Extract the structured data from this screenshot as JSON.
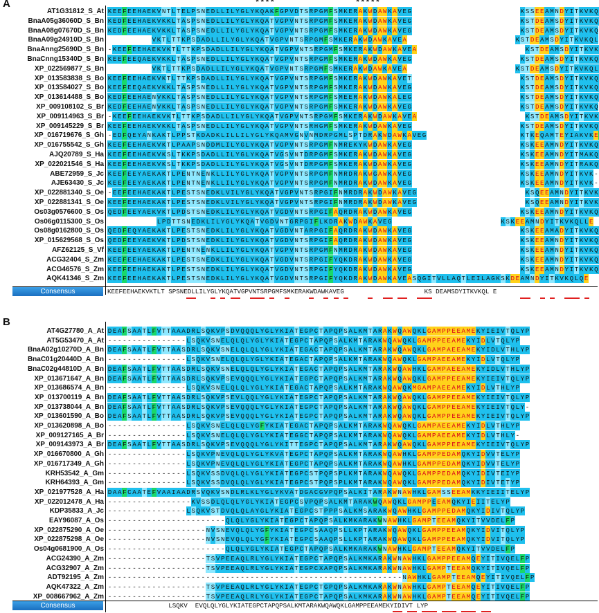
{
  "panelA": {
    "label": "A",
    "stars1": "****",
    "stars2": "*****",
    "consensus_label": "Consensus",
    "consensus_seq": "KEEFEEHAEKVKTLT SPSNEDLLILYGLYKQATVGPVNTSRPGMFSMKERAKWDAWKAVEG                     KS DEAMSDYITKVKQL E",
    "rows": [
      {
        "name": "AT1G31812_S_At",
        "seq": "KEEFEEHAEKVNTLTELPSNEDLLILYGLYKQAKFGPVDTSRPGMFSMKERAKWDAWKAVEG                      KSSEEAMNDYITKVKQLLE"
      },
      {
        "name": "BnaA05g36060D_S_Bn",
        "seq": "KEDFEEHAEKVKKLTASPSNEDLLILYGLYKQATVGPVNTSRPGMFSMKERAKWDAWKAVEG                      KSTDEAMSDYITKVKQLLE"
      },
      {
        "name": "BnaA08g07670D_S_Bn",
        "seq": "KEDFEEHAEKVKKLTASPSNEDLLILYGLYKQATVGPVNTSRPGMFSMKERAKWDAWKAVEG                      KSTDEAMSDYITKVKQ-"
      },
      {
        "name": "BnaA09g24910D_S_Bn",
        "seq": "         VKTLTTKPSDADLLILYGLYKQATVGPVNTSRPGMFSMKERAKWDAWKAVEA                      KSTDEAMSDYITKVKQL"
      },
      {
        "name": "BnaAnng25690D_S_Bn",
        "seq": "-KEEFEEHAEKVKTLTTKPSDADLLILYGLYKQATVGPVNTSRPGMFSMKERAKWDAWKAVEA                      KSTDEAMSDYITKVKQLM-"
      },
      {
        "name": "BnaCnng15340D_S_Bn",
        "seq": "KEEFEEQAEKVKKLTASPSNEDLLILYGLYKQATVGPVNTSRPGMFSMKERAKWDAWKAVEG                      KSTDEAMSDYITKVKQLLAE"
      },
      {
        "name": "XP_022569877_S_Bn",
        "seq": "         VKTLTTKPSDADLLILYGLYKQATVGPVNTSRPGMFSMKERAKWDAWKAVEA                      KSTDEAMSDYITKVKQLM-"
      },
      {
        "name": "XP_013583838_S_Bo",
        "seq": "KEEFEEHAEKVKTLTTKPSDADLLILYGLYKQATVGPVNTSRPGMFSMKERAKWDAWKAVET                      KSTDEAMSDYITKVKQLLE"
      },
      {
        "name": "XP_013584027_S_Bo",
        "seq": "KEEFEEQAEKVKKLTASPSNEDLLILYGLYKQATVGPVNTSRPGMFSMKERAKWDAWKAVEG                      KSTDEAMSDYITKVKQLLE"
      },
      {
        "name": "XP_013614488_S_Bo",
        "seq": "KEDFEEHAENVKKLTASPSNEDLLILYGLYKQATVGPVNTSRPGMFSMEERAKWDAWKALEG                      KSTDEAMSDYITKVKQLLE"
      },
      {
        "name": "XP_009108102_S_Br",
        "seq": "KEDFEEHAENVKKLTASPSNEDLLILYGLYKQATVGPVNTSRPGMFSMKERAKWDAWKAVEG                      KSTDEAMSDYITKVKQ-"
      },
      {
        "name": "XP_009114963_S_Br",
        "seq": "-KEEFEEHAEKVKTLTTKPSDADLLILYGLYKQATVGPVNTSRPGMFSMKERAKWDAWKAVEA                      KSTDEAMSDYITKVKQLME"
      },
      {
        "name": "XP_009145229_S_Br",
        "seq": "KEEFEEHAEKVKKLTASPSNEDLLILYGLYKQATVGPVNTSRHGMFSMKERAKWDAWKAVEG                      KSTDEAMSDYITKVKQLLE"
      },
      {
        "name": "XP_016719676_S_Gh",
        "seq": "-EDFQEYANKAKTLPPSTKDADKLILLILYGLYKQAMVGNVNMDRPGMLSPTDRAKWDAWKAVEG                   KTKEQAMTEYIAKVKEFL-"
      },
      {
        "name": "XP_016755542_S_Gh",
        "seq": "KEEFEEHAEKVKTLPAAPSNDDMLILYGLYKQATVGPVNTSRPGMFNMREKYKWDAWKAVEG                      KSKEEAMNDYITKVKQLLE"
      },
      {
        "name": "AJQ20789_S_Ha",
        "seq": "KEEFEEHAEKVKSLTKKPSDADLLILYGLYKQATVGSVNTDRPGMFSMKERAKWDAWKAVEG                      KSKEEAMNDYITMAKQLLE"
      },
      {
        "name": "XP_022021546_S_Ha",
        "seq": "KEEFEEHAEKVKSLTKKPSDADLLILYGLYKQATVGSVNTDRPGMFSMKERAKWDAWKAVEG                      KSKEEAMNDYITRAKQLLE"
      },
      {
        "name": "ABE72959_S_Jc",
        "seq": "KEEFEEYAEKAKTLPENTNENKLLILYGLYKQATVGPVNTSRPGMFNMRDRAKWGAWKAVEG                      KSKEEAMNDYITKVK-"
      },
      {
        "name": "AJE63430_S_Jc",
        "seq": "KEEFEEYAEKAKTLPENTNENKLLILYGLYKQATVGPVNTSRPGMFNMRDRAKWDAWKAVEG                      KSKEEAMNDYITKVK-"
      },
      {
        "name": "XP_022881340_S_Oe",
        "seq": "-EEFEEHAEKAKTLPESTSNEDKLVILYGLYKQATVGPVNTSRPGIFNMRDRAKWDAWKAVEG                      KSQEEAMNDYITKVKQLLE"
      },
      {
        "name": "XP_022881341_S_Oe",
        "seq": "KEEFEEHAEKAKTLPESTSNEDKLVILYGLYKQATVGPVNTSRPGIFNMRDRAKWDAWKAVEG                      KSQEEAMNDYITKVKQLLE"
      },
      {
        "name": "Os03g0576600_S_Os",
        "seq": "QEDFEEYAEKVKTLPDSTSNEDKLILYGLYKQATVGDVNTSRPGIFAQRDRAKWDAWKAVEG                      KSKEEAMNDYITKVKQLLE"
      },
      {
        "name": "Os06g0115300_S_Os",
        "seq": "          LPDTTSNEDKLILYGLYKQATVGDVNTGRPGIFLKDRAKWDAWKAVEG                      KSKEEAMNDYITKVKQLLE"
      },
      {
        "name": "Os08g0162800_S_Os",
        "seq": "QEDFEQYAEKAKTLPESTSNEDKLILYGLYKQATVGDVNTARPGIFAQRDRAKWDAWKAVEG                      KSKEEAMADYITKVKQLLE"
      },
      {
        "name": "XP_015629568_S_Os",
        "seq": "QEDFEEYAEKVKTLPDSTSNEDKLILYGLYKQATVGDVNTSRPGIFAQRDRAKWDAWKAVEG                      KSKEEAMNDYITKVKQLQE"
      },
      {
        "name": "AFZ62125_S_Vf",
        "seq": "KEEFEEYAEKAKTLPENTNENKLLILYGLYKQATVGPVNTSRPGMFNMRDRAKWDAWKAVEG                      KSKEEAMNDYITKVKQLLE"
      },
      {
        "name": "ACG32404_S_Zm",
        "seq": "KEEFEEHAEKAKTLPESTSNEDKLILYGLYKQATVGDVNTSRPGIFYQKDRAKWDAWKAVEG                      KSKEEAMNDYITKVKQLQE"
      },
      {
        "name": "ACG46576_S_Zm",
        "seq": "KEEFEEHAEKAKTLPESTSNEDKLILYGLYKQATVGDVNTSRPGIFYQKDRAKWDAWKAVEG                      KSKEEAMNDYITKVKQLQE"
      },
      {
        "name": "AQK41346_S_Zm",
        "seq": "KEEFEEHAEKAKTLPESTSNEDKLILYGLYKQATVGDVNTSRPGIFYQKDRAKWDAWKAVEASQGITVLLAQTLEILAGKSKDEAMNDYITKVKQLQE"
      }
    ]
  },
  "panelB": {
    "label": "B",
    "consensus_label": "Consensus",
    "consensus_seq": "                LSQKV  EVQLQLYGLYKIATEGPCTAPQPSALKMTARAKWQAWQKLGAMPPEEAMEKYIDIVT LYP",
    "rows": [
      {
        "name": "AT4G27780_A_At",
        "seq": "DEAFSAATLFVTTAAADRLSQKVPSDVQQQLYGLYKIATEGPCTAPQPSALKMTARAKWQAWQKLGAMPPEEAMEKYIEIVTQLYP"
      },
      {
        "name": "AT5G53470_A_At",
        "seq": "----------------LSQKVSNELQLQLYGLYKIATEGPCTAPQPSALKMTARAKWQAWQKLGAMPPEEAMEKYIDLVTQLYP"
      },
      {
        "name": "BnaA02g10270D_A_Bn",
        "seq": "DEAFSAATLFVTTAASDRLSQKVSNELQLQLYGLYKIATEGACTAPQPSALKMTARAKWQAWQKLGAMPAEEAMEKYIDLVTHLYP"
      },
      {
        "name": "BnaC01g20440D_A_Bn",
        "seq": "----------------LSQKVSNELQLQLYGLYKIATEGACTAPQPSALKMTARAKWQAWQKLGAMPAEEAMEKYIDLVTQLYP"
      },
      {
        "name": "BnaC02g44810D_A_Bn",
        "seq": "DEAFSAATLFVTTAASDRLSQKVSNELQLQLYGLYKIATEGACTAPQPSALKMTARAKWQAWHKLGAMPAEEAMEKYIDLVTHLYP"
      },
      {
        "name": "XP_013671647_A_Bn",
        "seq": "DEAFSAATLFVTTAASDRLSQKVPSEVQQQLYGLYKIATEGPCTAPQPSALKMTARAKWQAWQKLGAMPPEEAMEKYIEIVTQLYP"
      },
      {
        "name": "XP_013686574_A_Bn",
        "seq": "----------------LSQKVSNELQLQLYGLYKIATEGACTAPQPSALKMTARAKWQAWQKMGAMPAEEAMEKYIDLVTHLYP"
      },
      {
        "name": "XP_013700119_A_Bn",
        "seq": "DEAFSAATLFVTTAASDRLSQKVPSEVLQQLYGLYKIATEGPCTAPQPSALKMTARAKWQAWQKLGAMPPEEAMEKYIEIVTQLYP"
      },
      {
        "name": "XP_013738044_A_Bn",
        "seq": "DEAFSAATLFVTTAASDRLSQKVPSEVQQQLYGLYKIATEGPCTAPQPSALKMTARAKWQAWQKLGAMPPEEAMEKYIEIVTQLY-"
      },
      {
        "name": "XP_013601590_A_Bo",
        "seq": "DEAFSAATLFVTTAASDRLSQKVPSEVQQQLYGLYKIATEGPCTAPQPSALKMTARAKWQAWQKLGAMPPEEAMEKYIEIVTQLYP"
      },
      {
        "name": "XP_013620898_A_Bo",
        "seq": "----------------LSQKVSNELQLQLYGFYKIATEGACTAPQPSALKMTARAKWQAWQKLGAMPAEEAMEKYIDLVTHLYP"
      },
      {
        "name": "XP_009127165_A_Br",
        "seq": "----------------LSQKVSNELQLQLYGLYKIATEGGCTAPQPSALKMTARAKWQAWQKLGAMPAEEAMEKYIDLVTHLY-"
      },
      {
        "name": "XP_009143973_A_Br",
        "seq": "DEAFSAATLFVTTAASDRLSQKVPSEVQQQLYGLYKITTEGPCTAPQPSALKMTARAKWQAWQKLGAMPPEEAMEKYIEIVTQLYP"
      },
      {
        "name": "XP_016670800_A_Gh",
        "seq": "----------------LSQKVPNEVQLQLYGLYKVATEGPCTAPQPSALKMTARAKWQAWHKLGAMPPEDAMQKYIDVVTELYP"
      },
      {
        "name": "XP_016717349_A_Gh",
        "seq": "----------------LSQKVPNEVQLQLYGLYKIATEGPCTAPQPSALKMTARAKWQAWHKLGAMPPEDAMQKYIDVVTELYP"
      },
      {
        "name": "KRH53542_A_Gm",
        "seq": "----------------LSQKVSSDVQLQLYGLYKIATEGPCSTPQPSPLKMTARAKWQAWQKLGAMPPEDAMQKYIDIVTEIYP"
      },
      {
        "name": "KRH64393_A_Gm",
        "seq": "----------------LSQKVSSDVQLQLYGLYKIATEGPCSTPQPSPLKMTARAKWQAWQKLGAMPPEDAMQKYIDIVTETYP"
      },
      {
        "name": "XP_021977528_A_Ha",
        "seq": "DAAFCAATEFVAAIAADRSVQKVSNDLRLKLYGLYKVATDGACGVPQPSALKITARAKWNAWHKLGAMSSEEAMKKYIEIITELYP"
      },
      {
        "name": "XP_022012478_A_Ha",
        "seq": "-----------------KVSSDLQLQLYGLYKIATEGPCSVPQPSALKMTARAKWQAWQKLGAMPPEEAMQKYIEIITELYP"
      },
      {
        "name": "KDP35833_A_Jc",
        "seq": "----------------LSQKVSTDVQLQLAYGLYKIATEGPCSTPPPSALKMSARAKWQAWHKLGAMPPEDAMQKYIDIVTQLYP"
      },
      {
        "name": "EAY96087_A_Os",
        "seq": "------------------------QLQLYGLYKIATEGPCTAPQPSALKMKARAKWNAWHKLGAMPTEEAMQKYITVVDELFP"
      },
      {
        "name": "XP_022875290_A_Oe",
        "seq": "--------------------NVSNEVQLQLYGFYKIATEGPCSAAQPSLLKPTARAKWQAWQKLGAMPPEEAMQKYIDVITQLYP"
      },
      {
        "name": "XP_022875298_A_Oe",
        "seq": "--------------------NVSNEVQLQLYGFYKIATEGPCSAAQPSLLKPTARAKWQAWQKLGAMPPEEAMQKYIDVITQLYP"
      },
      {
        "name": "Os04g0681900_A_Os",
        "seq": "------------------------QLQLYGLYKIATEGPCTAPQPSALKMKARAKWNAWHKLGAMPTEEAMQKYITVVDELFP"
      },
      {
        "name": "ACG24390_A_Zm",
        "seq": "--------------------TSVPEEAQLRLYGLYKIATEGPCTAPQPSALKMKARAKWNAWHKLGAMPPEEAMQEYITIVQELFP"
      },
      {
        "name": "ACG32907_A_Zm",
        "seq": "--------------------TSVPEEAQLRLYGLYKIATEGPCXAPQPSALKMKARAKWNAWHKLGAMPTEEAMQKYITIVQELFP"
      },
      {
        "name": "ADT92195_A_Zm",
        "seq": "------------------------------------------------------------NAWHKLGAMPTEEAMQEYITIVQELFP"
      },
      {
        "name": "AQK47322_A_Zm",
        "seq": "--------------------TSVPEEAQLRLYGLYKIATEGPCTGPQPSALKMKARAKWNAWHKLGAMPTEEAMQEYITIVQELFP"
      },
      {
        "name": "XP_008667962_A_Zm",
        "seq": "--------------------TSVPEEAQLRLYGLYKIATEGPCTAPQPSALKMKARAKWNAWHKLGAMPTEEAMQEYITIVQELFP"
      }
    ]
  },
  "colors": {
    "blue": "#1fc0ee",
    "yellow": "#ffd21a",
    "green": "#19d86a",
    "red_text": "#d9001a",
    "consensus_bar": "#1a6fc0",
    "underline": "#e02020"
  }
}
